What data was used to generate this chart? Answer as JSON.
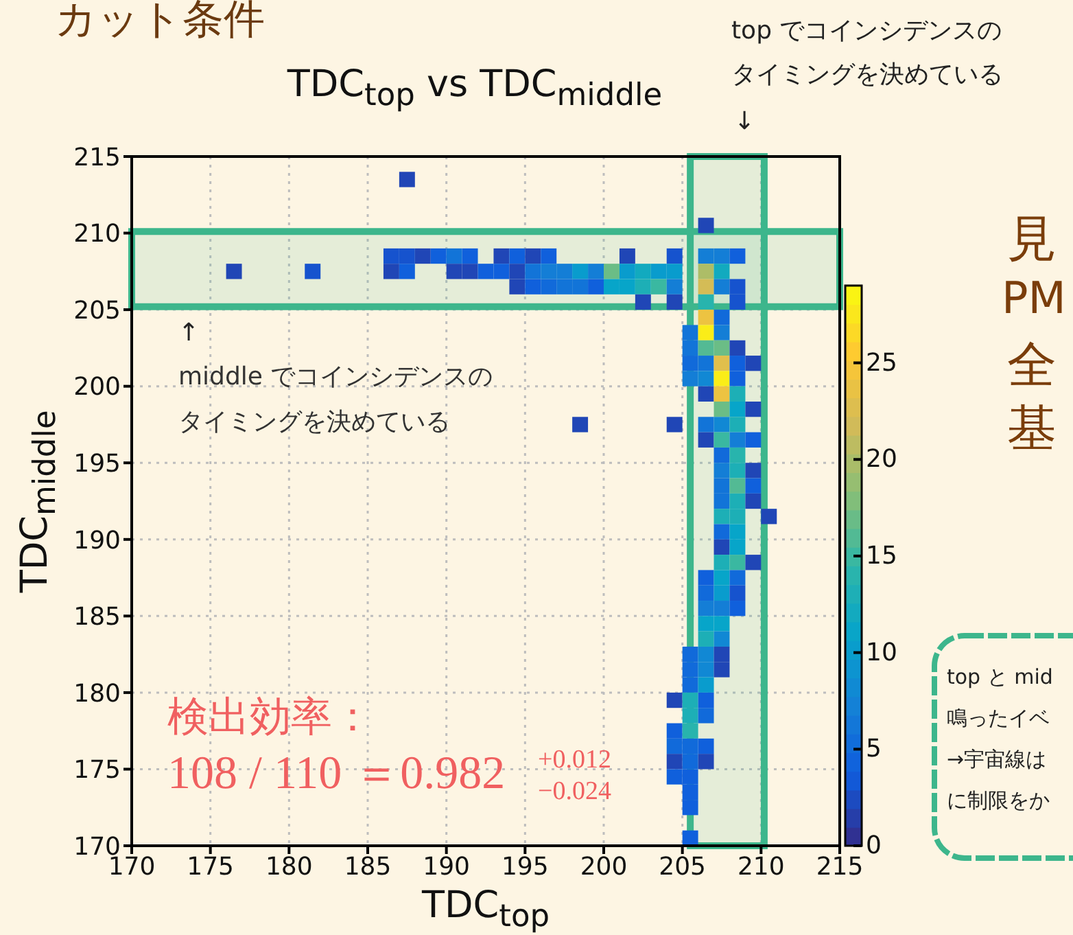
{
  "chart_data": {
    "type": "scatter",
    "title": "TDC$_{top}$ vs TDC$_{middle}$",
    "xlabel": "TDC$_{top}$",
    "ylabel": "TDC$_{middle}$",
    "marker": "square",
    "grid": true,
    "xlim": [
      170,
      215
    ],
    "xticks": [
      170,
      175,
      180,
      185,
      190,
      195,
      200,
      205,
      210,
      215
    ],
    "ylim": [
      170,
      215
    ],
    "yticks": [
      170,
      175,
      180,
      185,
      190,
      195,
      200,
      205,
      210,
      215
    ],
    "clim": [
      0,
      29
    ],
    "cticks": [
      0,
      5,
      10,
      15,
      20,
      25
    ],
    "series": [
      {
        "x": [
          176.5,
          181.5,
          187.5,
          186.5,
          187.5,
          188.5,
          189.5,
          190.5,
          191.5,
          193.5,
          194.5,
          195.5,
          196.5,
          201.5,
          204.5,
          206.5,
          207.5,
          208.5,
          186.5,
          187.5,
          190.5,
          191.5,
          192.5,
          193.5,
          194.5,
          195.5,
          196.5,
          197.5,
          198.5,
          199.5,
          200.5,
          201.5,
          202.5,
          203.5,
          204.5,
          206.5,
          207.5,
          194.5,
          195.5,
          196.5,
          197.5,
          198.5,
          199.5,
          200.5,
          201.5,
          202.5,
          203.5,
          204.5,
          206.5,
          207.5,
          208.5,
          202.5,
          204.5,
          206.5,
          208.5,
          206.5,
          206.5,
          207.5,
          205.5,
          206.5,
          207.5,
          205.5,
          206.5,
          207.5,
          208.5,
          205.5,
          206.5,
          207.5,
          208.5,
          209.5,
          205.5,
          206.5,
          207.5,
          208.5,
          206.5,
          207.5,
          208.5,
          207.5,
          208.5,
          209.5,
          198.5,
          204.5,
          206.5,
          207.5,
          208.5,
          206.5,
          207.5,
          208.5,
          209.5,
          207.5,
          208.5,
          207.5,
          208.5,
          209.5,
          207.5,
          208.5,
          209.5,
          207.5,
          208.5,
          209.5,
          207.5,
          208.5,
          210.5,
          207.5,
          208.5,
          207.5,
          208.5,
          207.5,
          208.5,
          209.5,
          206.5,
          207.5,
          208.5,
          206.5,
          207.5,
          208.5,
          206.5,
          207.5,
          208.5,
          206.5,
          207.5,
          206.5,
          207.5,
          205.5,
          206.5,
          207.5,
          205.5,
          206.5,
          207.5,
          205.5,
          206.5,
          204.5,
          205.5,
          206.5,
          205.5,
          206.5,
          204.5,
          205.5,
          204.5,
          205.5,
          206.5,
          204.5,
          205.5,
          206.5,
          204.5,
          205.5,
          205.5,
          205.5,
          205.5
        ],
        "values": [
          207.5,
          207.5,
          213.5,
          208.5,
          208.5,
          208.5,
          208.5,
          208.5,
          208.5,
          208.5,
          208.5,
          208.5,
          208.5,
          208.5,
          208.5,
          208.5,
          208.5,
          208.5,
          207.5,
          207.5,
          207.5,
          207.5,
          207.5,
          207.5,
          207.5,
          207.5,
          207.5,
          207.5,
          207.5,
          207.5,
          207.5,
          207.5,
          207.5,
          207.5,
          207.5,
          207.5,
          207.5,
          206.5,
          206.5,
          206.5,
          206.5,
          206.5,
          206.5,
          206.5,
          206.5,
          206.5,
          206.5,
          206.5,
          206.5,
          206.5,
          206.5,
          205.5,
          205.5,
          205.5,
          205.5,
          210.5,
          204.5,
          204.5,
          203.5,
          203.5,
          203.5,
          202.5,
          202.5,
          202.5,
          202.5,
          201.5,
          201.5,
          201.5,
          201.5,
          201.5,
          200.5,
          200.5,
          200.5,
          200.5,
          199.5,
          199.5,
          199.5,
          198.5,
          198.5,
          198.5,
          197.5,
          197.5,
          197.5,
          197.5,
          197.5,
          196.5,
          196.5,
          196.5,
          196.5,
          195.5,
          195.5,
          194.5,
          194.5,
          194.5,
          193.5,
          193.5,
          193.5,
          192.5,
          192.5,
          192.5,
          191.5,
          191.5,
          191.5,
          190.5,
          190.5,
          189.5,
          189.5,
          188.5,
          188.5,
          188.5,
          187.5,
          187.5,
          187.5,
          186.5,
          186.5,
          186.5,
          185.5,
          185.5,
          185.5,
          184.5,
          184.5,
          183.5,
          183.5,
          182.5,
          182.5,
          182.5,
          181.5,
          181.5,
          181.5,
          180.5,
          180.5,
          179.5,
          179.5,
          179.5,
          178.5,
          178.5,
          177.5,
          177.5,
          176.5,
          176.5,
          176.5,
          175.5,
          175.5,
          175.5,
          174.5,
          174.5,
          173.5,
          172.5,
          170.5
        ],
        "cvalues": [
          2,
          3,
          2,
          3,
          3,
          2,
          4,
          6,
          4,
          2,
          4,
          2,
          4,
          2,
          3,
          7,
          7,
          4,
          2,
          4,
          2,
          2,
          4,
          4,
          2,
          6,
          7,
          7,
          10,
          7,
          17,
          10,
          12,
          10,
          10,
          20,
          12,
          2,
          4,
          5,
          6,
          6,
          4,
          11,
          11,
          13,
          15,
          7,
          22,
          7,
          3,
          2,
          2,
          14,
          3,
          2,
          24,
          5,
          6,
          28,
          7,
          6,
          16,
          17,
          2,
          5,
          6,
          23,
          4,
          2,
          7,
          8,
          28,
          4,
          2,
          24,
          13,
          17,
          11,
          2,
          2,
          2,
          6,
          8,
          13,
          2,
          15,
          7,
          4,
          5,
          14,
          7,
          13,
          2,
          6,
          16,
          4,
          6,
          13,
          2,
          13,
          13,
          2,
          5,
          11,
          2,
          11,
          13,
          15,
          2,
          4,
          11,
          5,
          5,
          10,
          3,
          7,
          7,
          4,
          11,
          11,
          13,
          8,
          5,
          8,
          2,
          5,
          8,
          2,
          5,
          10,
          2,
          13,
          4,
          13,
          5,
          4,
          14,
          5,
          5,
          4,
          2,
          5,
          2,
          4,
          4,
          4,
          4,
          4
        ]
      }
    ],
    "bands": [
      {
        "axis": "x",
        "from": 205.5,
        "to": 210.2,
        "color": "#3db68c"
      },
      {
        "axis": "y",
        "from": 205.2,
        "to": 210.1,
        "color": "#3db68c"
      }
    ],
    "annotations": [
      "カット条件",
      "top でコインシデンスの",
      "タイミングを決めている",
      "↓",
      "↑",
      "middle でコインシデンスの",
      "タイミングを決めている",
      "検出効率：",
      "108 / 110 ＝0.982",
      "+0.012",
      "−0.024",
      "見",
      "PM",
      "全",
      "基",
      "top と mid",
      "鳴ったイベ",
      "→宇宙線は",
      "に制限をか"
    ]
  }
}
